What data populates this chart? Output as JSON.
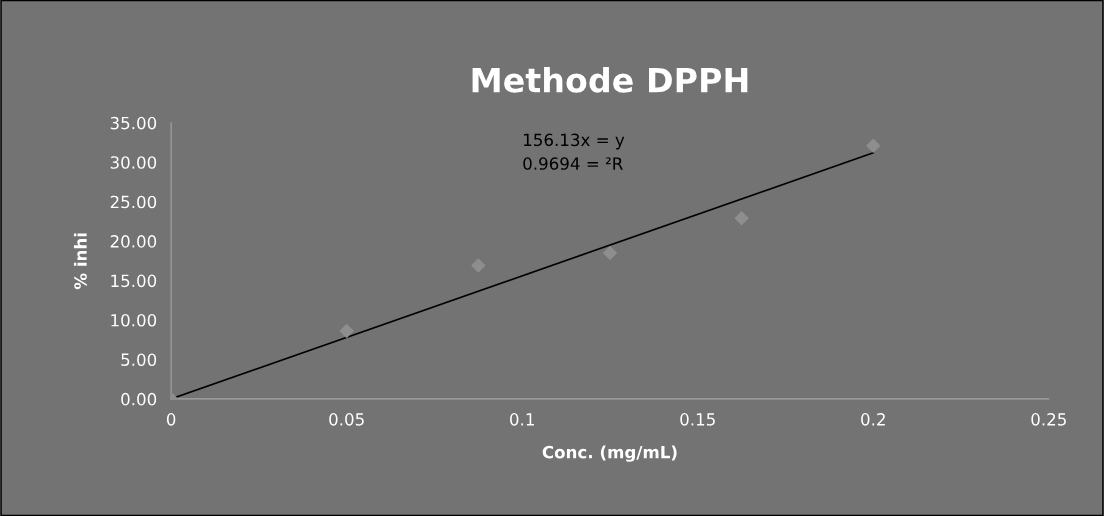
{
  "chart_data": {
    "type": "scatter",
    "title": "Methode DPPH",
    "xlabel": "Conc. (mg/mL)",
    "ylabel": "% inhi",
    "x": [
      0,
      0.05,
      0.0875,
      0.125,
      0.1625,
      0.2
    ],
    "series": [
      {
        "color": "#8e8e8e",
        "values": [
          0,
          8.6,
          16.9,
          18.5,
          22.9,
          32.1
        ],
        "marker": "diamond"
      },
      {
        "type": "line",
        "color": "#000000",
        "x": [
          0,
          0.2
        ],
        "values": [
          0,
          31.2
        ],
        "marker": "none"
      }
    ],
    "annotations": [
      "156.13x = y\n0.9694 = ²R"
    ],
    "xlim": [
      0,
      0.25
    ],
    "xticks": [
      0,
      0.05,
      0.1,
      0.15,
      0.2,
      0.25
    ],
    "ylim": [
      0,
      35
    ],
    "yticks": [
      {
        "value": 0,
        "label": "0.00"
      },
      {
        "value": 5,
        "label": "5.00"
      },
      {
        "value": 10,
        "label": "10.00"
      },
      {
        "value": 15,
        "label": "15.00"
      },
      {
        "value": 20,
        "label": "20.00"
      },
      {
        "value": 25,
        "label": "25.00"
      },
      {
        "value": 30,
        "label": "30.00"
      },
      {
        "value": 35,
        "label": "35.00"
      }
    ],
    "grid": false,
    "legend": false
  }
}
